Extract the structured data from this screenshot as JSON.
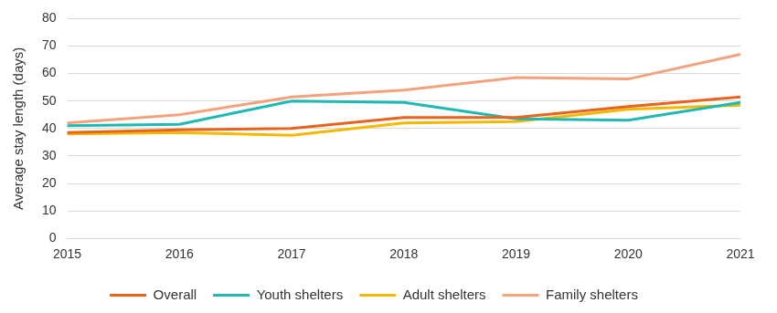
{
  "chart_data": {
    "type": "line",
    "y_label": "Average stay length (days)",
    "categories": [
      "2015",
      "2016",
      "2017",
      "2018",
      "2019",
      "2020",
      "2021"
    ],
    "series": [
      {
        "name": "Overall",
        "color": "#e8631c",
        "values": [
          38.5,
          39.5,
          40,
          44,
          44,
          48,
          51.5
        ]
      },
      {
        "name": "Youth shelters",
        "color": "#1fb8b4",
        "values": [
          41,
          41.5,
          50,
          49.5,
          43.5,
          43,
          49.5
        ]
      },
      {
        "name": "Adult shelters",
        "color": "#f5b800",
        "values": [
          38,
          38.5,
          37.5,
          42,
          42.5,
          47,
          48.5
        ]
      },
      {
        "name": "Family shelters",
        "color": "#f4a27c",
        "values": [
          42,
          45,
          51.5,
          54,
          58.5,
          58,
          67
        ]
      }
    ],
    "ylim": [
      0,
      80
    ],
    "yticks": [
      0,
      10,
      20,
      30,
      40,
      50,
      60,
      70,
      80
    ],
    "grid": true,
    "legend": "bottom"
  }
}
